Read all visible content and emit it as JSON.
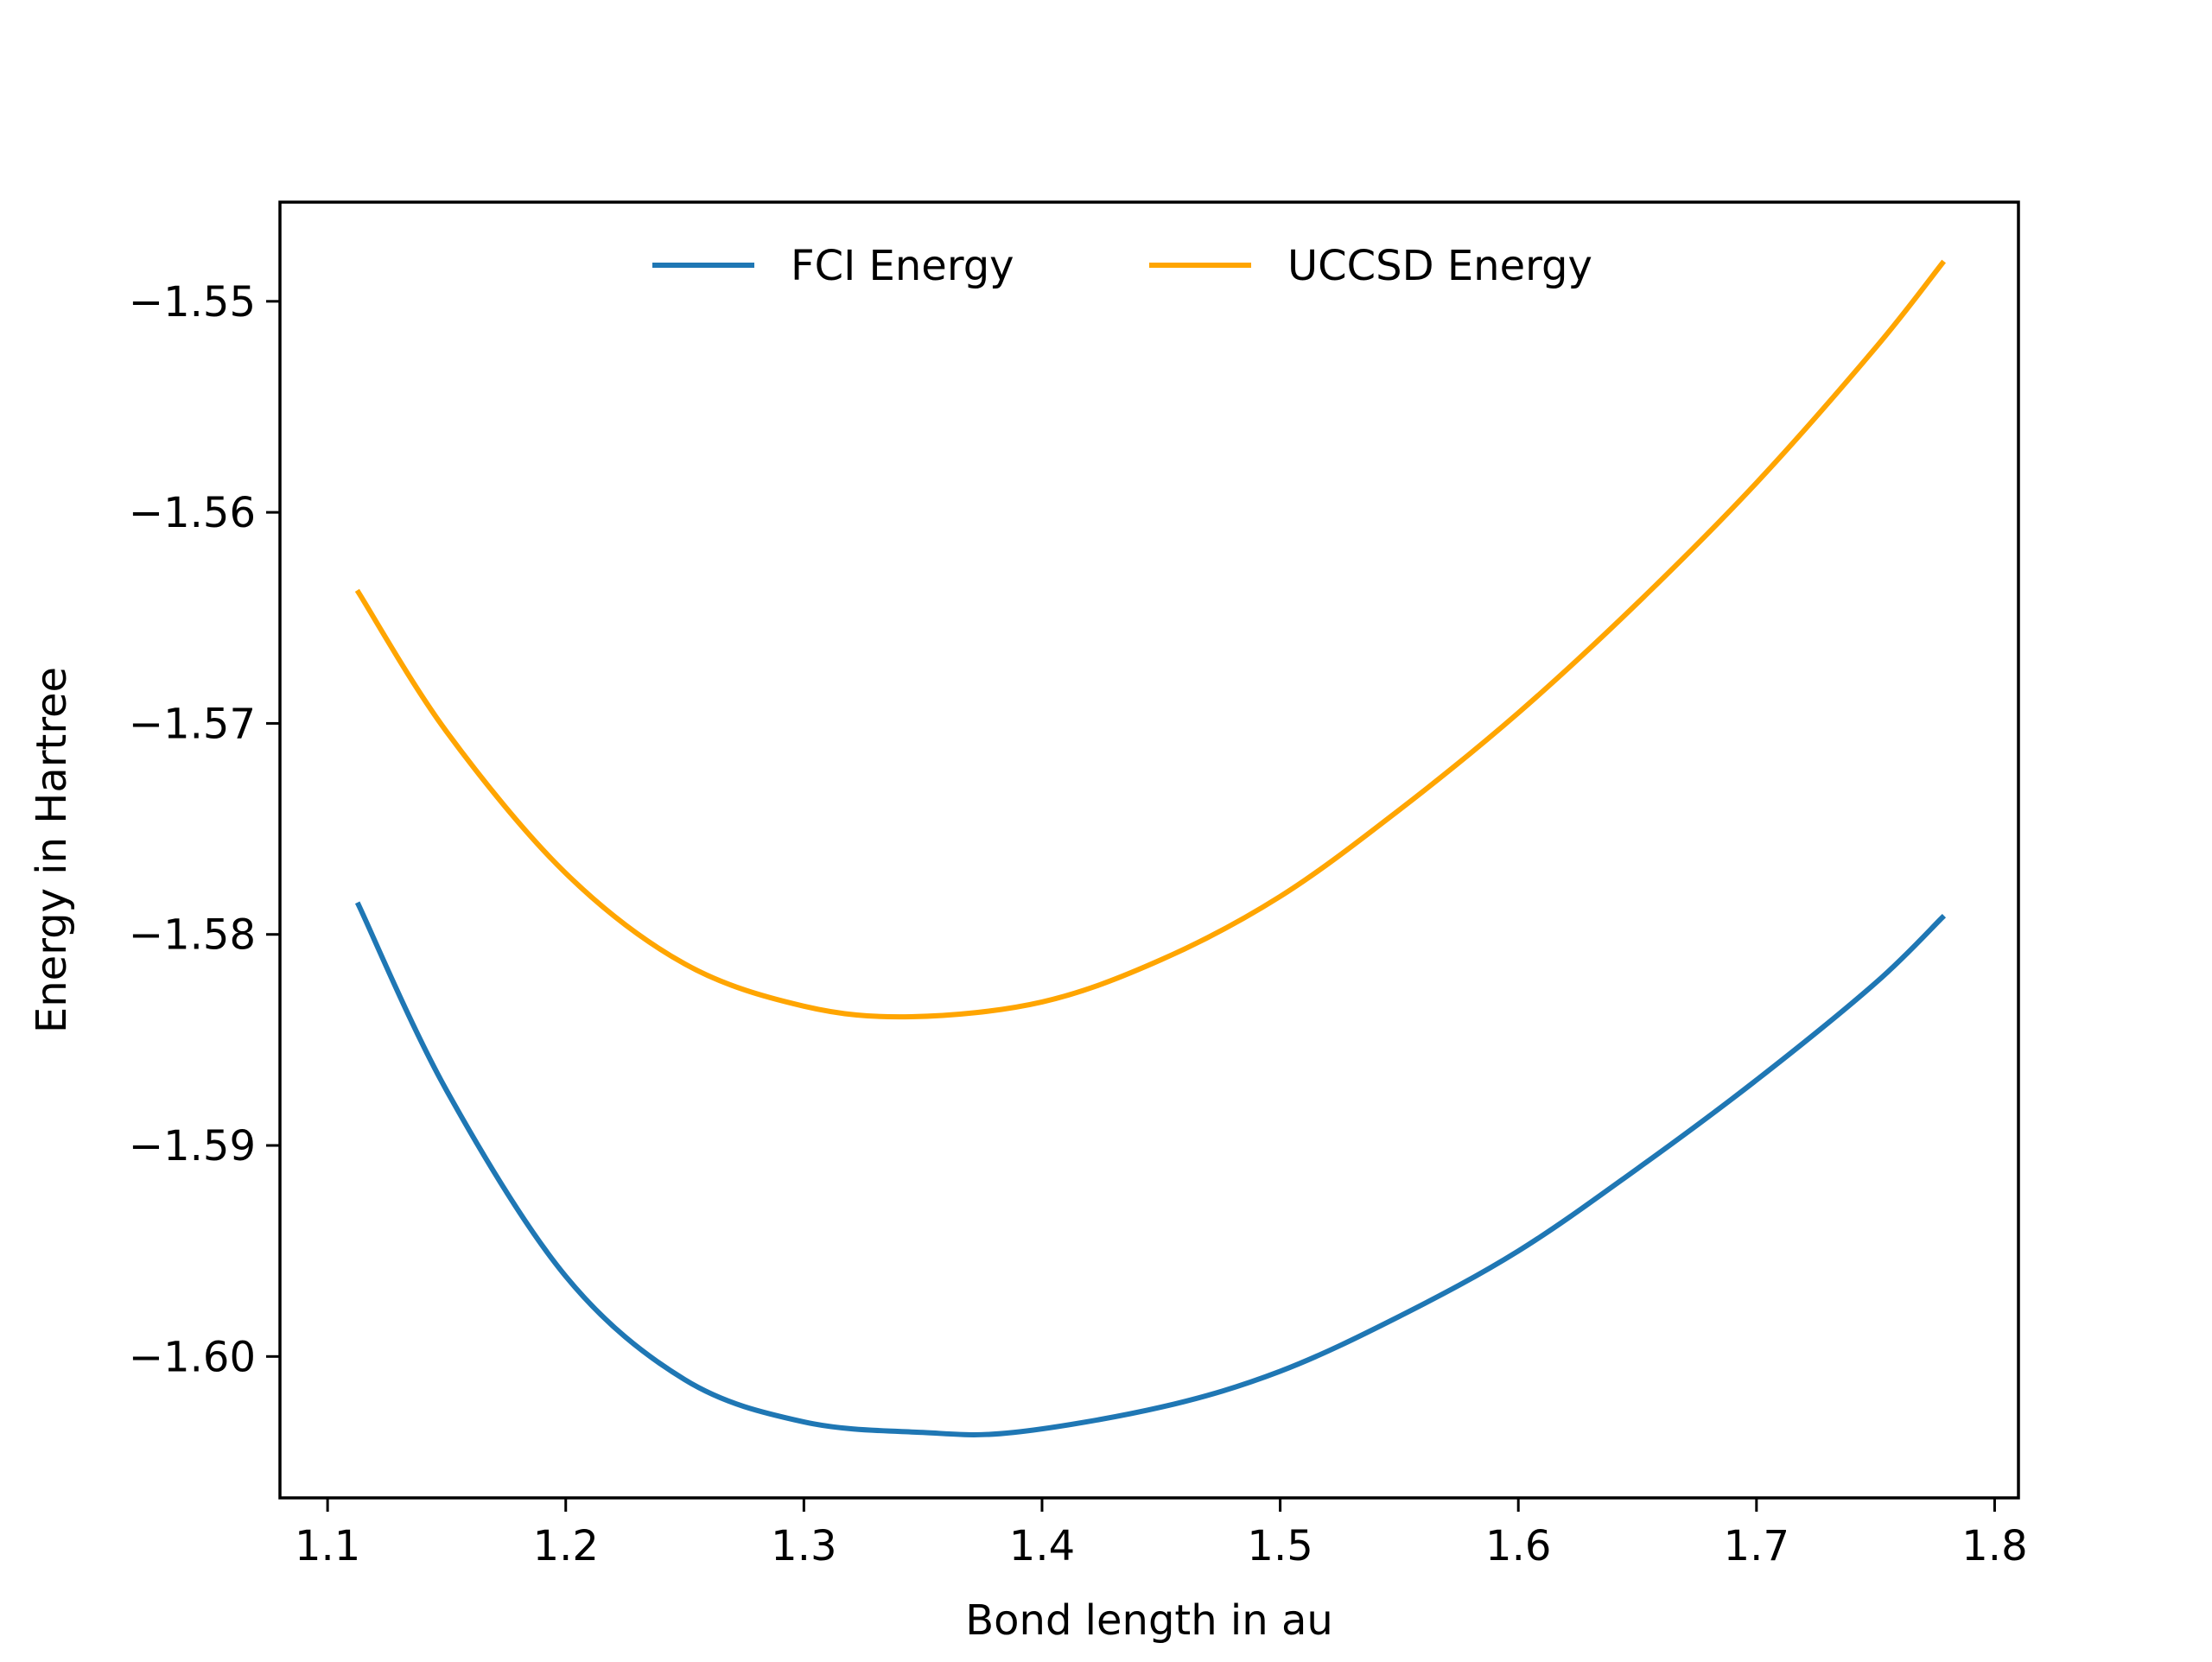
{
  "chart_data": {
    "type": "line",
    "title": "",
    "xlabel": "Bond length in au",
    "ylabel": "Energy in Hartree",
    "xlim": [
      1.08,
      1.81
    ],
    "ylim": [
      -1.6067,
      -1.5453
    ],
    "xticks": [
      1.1,
      1.2,
      1.3,
      1.4,
      1.5,
      1.6,
      1.7,
      1.8
    ],
    "xtick_labels": [
      "1.1",
      "1.2",
      "1.3",
      "1.4",
      "1.5",
      "1.6",
      "1.7",
      "1.8"
    ],
    "yticks": [
      -1.55,
      -1.56,
      -1.57,
      -1.58,
      -1.59,
      -1.6
    ],
    "ytick_labels": [
      "−1.55",
      "−1.56",
      "−1.57",
      "−1.58",
      "−1.59",
      "−1.60"
    ],
    "grid": false,
    "legend": {
      "position": "top-center",
      "columns": 2
    },
    "series": [
      {
        "name": "FCI Energy",
        "color": "#1f77b4",
        "x": [
          1.113,
          1.15,
          1.2,
          1.25,
          1.3,
          1.35,
          1.388,
          1.45,
          1.5,
          1.55,
          1.6,
          1.65,
          1.7,
          1.75,
          1.778
        ],
        "y": [
          -1.5786,
          -1.5874,
          -1.5962,
          -1.6011,
          -1.6031,
          -1.6036,
          -1.6036,
          -1.6024,
          -1.6007,
          -1.5981,
          -1.595,
          -1.5911,
          -1.5869,
          -1.5823,
          -1.5792
        ]
      },
      {
        "name": "UCCSD Energy",
        "color": "#ffa500",
        "x": [
          1.113,
          1.15,
          1.2,
          1.25,
          1.3,
          1.345,
          1.4,
          1.45,
          1.5,
          1.55,
          1.6,
          1.65,
          1.7,
          1.75,
          1.778
        ],
        "y": [
          -1.5638,
          -1.5704,
          -1.5771,
          -1.5814,
          -1.5834,
          -1.5839,
          -1.5832,
          -1.5812,
          -1.5782,
          -1.5741,
          -1.5695,
          -1.5643,
          -1.5586,
          -1.5522,
          -1.5482
        ]
      }
    ]
  }
}
